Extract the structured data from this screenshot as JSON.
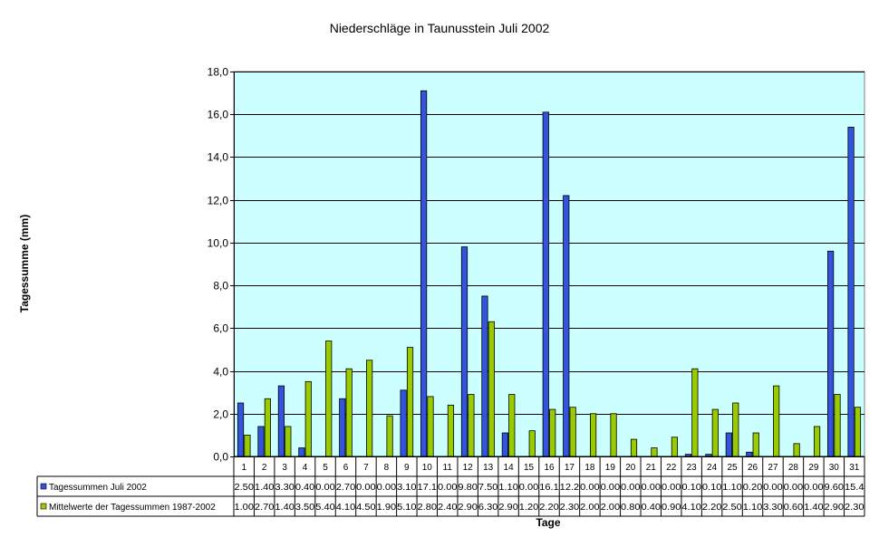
{
  "chart_data": {
    "type": "bar",
    "title": "Niederschläge in Taunusstein Juli 2002",
    "xlabel": "Tage",
    "ylabel": "Tagessumme (mm)",
    "ylim": [
      0,
      18
    ],
    "yticks": [
      "0,0",
      "2,0",
      "4,0",
      "6,0",
      "8,0",
      "10,0",
      "12,0",
      "14,0",
      "16,0",
      "18,0"
    ],
    "grid": true,
    "legend": "data-table",
    "categories": [
      "1",
      "2",
      "3",
      "4",
      "5",
      "6",
      "7",
      "8",
      "9",
      "10",
      "11",
      "12",
      "13",
      "14",
      "15",
      "16",
      "17",
      "18",
      "19",
      "20",
      "21",
      "22",
      "23",
      "24",
      "25",
      "26",
      "27",
      "28",
      "29",
      "30",
      "31"
    ],
    "series": [
      {
        "name": "Tagessummen Juli 2002",
        "color": "#3355dd",
        "values": [
          2.5,
          1.4,
          3.3,
          0.4,
          0.0,
          2.7,
          0.0,
          0.0,
          3.1,
          17.1,
          0.0,
          9.8,
          7.5,
          1.1,
          0.0,
          16.1,
          12.2,
          0.0,
          0.0,
          0.0,
          0.0,
          0.0,
          0.1,
          0.1,
          1.1,
          0.2,
          0.0,
          0.0,
          0.0,
          9.6,
          15.4
        ],
        "labels": [
          "2.50",
          "1.40",
          "3.30",
          "0.40",
          "0.00",
          "2.70",
          "0.00",
          "0.00",
          "3.10",
          "17.1",
          "0.00",
          "9.80",
          "7.50",
          "1.10",
          "0.00",
          "16.1",
          "12.2",
          "0.00",
          "0.00",
          "0.00",
          "0.00",
          "0.00",
          "0.10",
          "0.10",
          "1.10",
          "0.20",
          "0.00",
          "0.00",
          "0.00",
          "9.60",
          "15.4"
        ]
      },
      {
        "name": "Mittelwerte der Tagessummen 1987-2002",
        "color": "#99cc00",
        "values": [
          1.0,
          2.7,
          1.4,
          3.5,
          5.4,
          4.1,
          4.5,
          1.9,
          5.1,
          2.8,
          2.4,
          2.9,
          6.3,
          2.9,
          1.2,
          2.2,
          2.3,
          2.0,
          2.0,
          0.8,
          0.4,
          0.9,
          4.1,
          2.2,
          2.5,
          1.1,
          3.3,
          0.6,
          1.4,
          2.9,
          2.3
        ],
        "labels": [
          "1.00",
          "2.70",
          "1.40",
          "3.50",
          "5.40",
          "4.10",
          "4.50",
          "1.90",
          "5.10",
          "2.80",
          "2.40",
          "2.90",
          "6.30",
          "2.90",
          "1.20",
          "2.20",
          "2.30",
          "2.00",
          "2.00",
          "0.80",
          "0.40",
          "0.90",
          "4.10",
          "2.20",
          "2.50",
          "1.10",
          "3.30",
          "0.60",
          "1.40",
          "2.90",
          "2.30"
        ]
      }
    ],
    "colors": {
      "plot_background": "#ccffff",
      "gridline": "#000000"
    }
  }
}
